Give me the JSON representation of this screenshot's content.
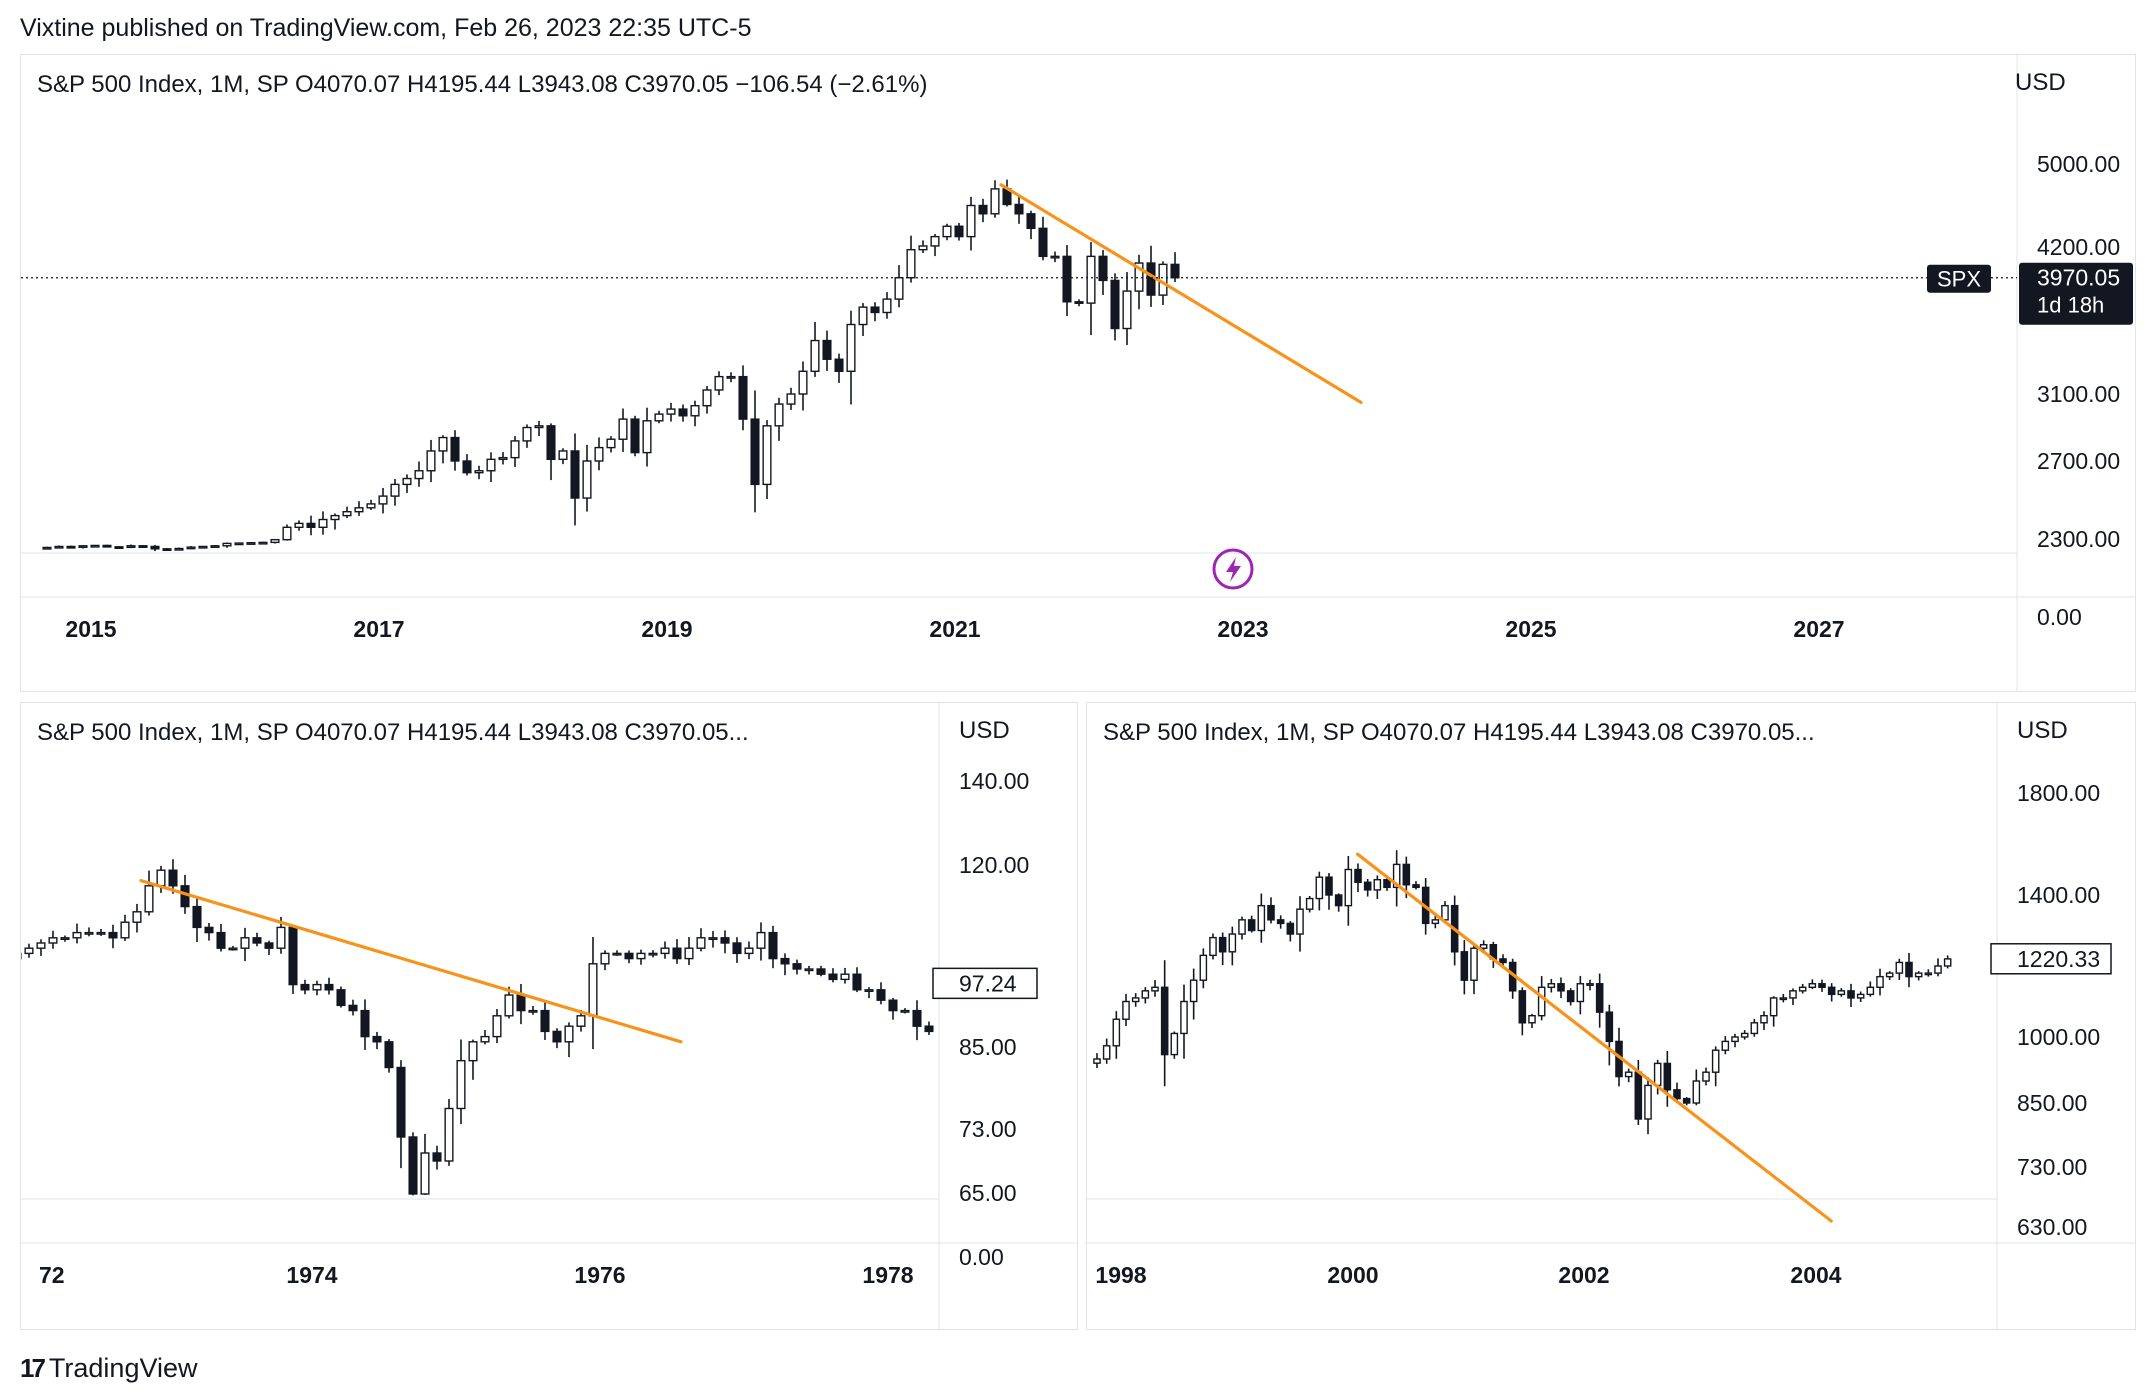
{
  "header": {
    "published": "Vixtine published on TradingView.com, Feb 26, 2023 22:35 UTC-5"
  },
  "footer": {
    "brand": "TradingView",
    "logo_icon": "tradingview-logo-icon"
  },
  "colors": {
    "candle": "#131722",
    "trendline": "#f7931a",
    "grid": "#e0e3eb",
    "alert_icon": "#9c27b0"
  },
  "chart_data": [
    {
      "type": "candlestick",
      "legend": "S&P 500 Index, 1M, SP  O4070.07  H4195.44  L3943.08  C3970.05  −106.54 (−2.61%)",
      "currency": "USD",
      "y_ticks": [
        "5000.00",
        "4200.00",
        "3100.00",
        "2700.00",
        "2300.00",
        "0.00"
      ],
      "x_ticks": [
        "2015",
        "2017",
        "2019",
        "2021",
        "2023",
        "2025",
        "2027"
      ],
      "last_price": {
        "symbol": "SPX",
        "value": "3970.05",
        "countdown": "1d 18h"
      },
      "alert_icon": "lightning-icon",
      "trendline": {
        "from": [
          "2021-09",
          4800
        ],
        "to": [
          "2024-03",
          3050
        ]
      },
      "closes": [
        2050,
        2080,
        2070,
        2100,
        2110,
        2070,
        2060,
        2100,
        2080,
        2010,
        2000,
        2020,
        2060,
        2080,
        2100,
        2170,
        2180,
        2190,
        2200,
        2280,
        2360,
        2380,
        2360,
        2400,
        2420,
        2440,
        2460,
        2480,
        2520,
        2580,
        2610,
        2650,
        2760,
        2840,
        2700,
        2640,
        2650,
        2710,
        2720,
        2820,
        2900,
        2910,
        2710,
        2760,
        2510,
        2700,
        2780,
        2830,
        2950,
        2750,
        2940,
        2980,
        3010,
        2970,
        3030,
        3130,
        3230,
        3230,
        2950,
        2580,
        2910,
        3040,
        3100,
        3270,
        3500,
        3360,
        3270,
        3620,
        3750,
        3710,
        3810,
        3970,
        4180,
        4210,
        4300,
        4400,
        4300,
        4600,
        4520,
        4760,
        4610,
        4520,
        4380,
        4130,
        4130,
        3790,
        3780,
        4130,
        3950,
        3590,
        3870,
        4080,
        3840,
        4070,
        3970
      ]
    },
    {
      "type": "candlestick",
      "legend": "S&P 500 Index, 1M, SP  O4070.07  H4195.44  L3943.08  C3970.05...",
      "currency": "USD",
      "y_ticks": [
        "140.00",
        "120.00",
        "85.00",
        "73.00",
        "65.00",
        "0.00"
      ],
      "x_ticks": [
        "72",
        "1974",
        "1976",
        "1978"
      ],
      "last_price": {
        "value": "97.24"
      },
      "trendline": {
        "from": [
          "1972-11",
          117
        ],
        "to": [
          "1976-08",
          86
        ]
      },
      "closes": [
        103,
        104,
        105,
        106,
        106,
        107,
        107,
        107,
        106,
        109,
        111,
        116,
        119,
        116,
        112,
        108,
        107,
        104,
        104,
        106,
        105,
        104,
        108,
        97,
        96,
        97,
        96,
        93,
        92,
        87,
        86,
        82,
        72,
        64,
        70,
        69,
        76,
        83,
        86,
        87,
        91,
        95,
        92,
        92,
        88,
        86,
        89,
        91,
        101,
        103,
        103,
        102,
        103,
        103,
        104,
        102,
        104,
        106,
        106,
        105,
        103,
        104,
        107,
        102,
        101,
        100,
        100,
        99,
        98,
        99,
        96,
        96,
        94,
        92,
        92,
        89,
        88,
        89,
        93,
        97
      ]
    },
    {
      "type": "candlestick",
      "legend": "S&P 500 Index, 1M, SP  O4070.07  H4195.44  L3943.08  C3970.05...",
      "currency": "USD",
      "y_ticks": [
        "1800.00",
        "1400.00",
        "1000.00",
        "850.00",
        "730.00",
        "630.00"
      ],
      "x_ticks": [
        "1998",
        "2000",
        "2002",
        "2004"
      ],
      "last_price": {
        "value": "1220.33"
      },
      "trendline": {
        "from": [
          "2000-03",
          1560
        ],
        "to": [
          "2004-04",
          640
        ]
      },
      "closes": [
        950,
        980,
        1050,
        1100,
        1110,
        1130,
        1140,
        960,
        1010,
        1100,
        1160,
        1230,
        1280,
        1240,
        1290,
        1330,
        1300,
        1370,
        1330,
        1320,
        1290,
        1360,
        1390,
        1470,
        1400,
        1370,
        1500,
        1450,
        1420,
        1460,
        1430,
        1520,
        1440,
        1430,
        1320,
        1330,
        1370,
        1240,
        1160,
        1250,
        1260,
        1220,
        1210,
        1130,
        1040,
        1060,
        1140,
        1150,
        1130,
        1100,
        1150,
        1150,
        1070,
        990,
        910,
        920,
        820,
        890,
        940,
        880,
        860,
        850,
        900,
        920,
        970,
        990,
        1000,
        1010,
        1040,
        1060,
        1110,
        1110,
        1130,
        1140,
        1150,
        1140,
        1120,
        1130,
        1110,
        1120,
        1140,
        1170,
        1180,
        1210,
        1170,
        1180,
        1180,
        1200,
        1220
      ]
    }
  ]
}
